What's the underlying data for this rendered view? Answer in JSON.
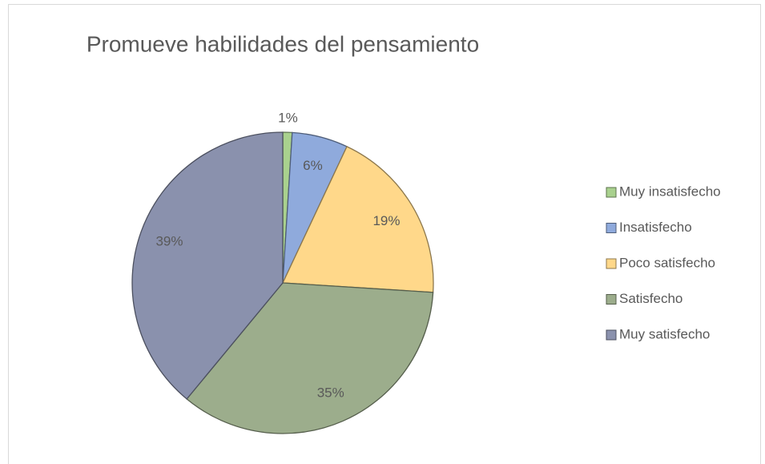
{
  "chart_data": {
    "type": "pie",
    "title": "Promueve habilidades del pensamiento",
    "categories": [
      "Muy insatisfecho",
      "Insatisfecho",
      "Poco satisfecho",
      "Satisfecho",
      "Muy satisfecho"
    ],
    "values": [
      1,
      6,
      19,
      35,
      39
    ],
    "value_labels": [
      "1%",
      "6%",
      "19%",
      "35%",
      "39%"
    ],
    "colors": [
      "#a9d18e",
      "#8faadc",
      "#ffd88a",
      "#9cad8c",
      "#8a91ad"
    ],
    "legend": "right"
  }
}
